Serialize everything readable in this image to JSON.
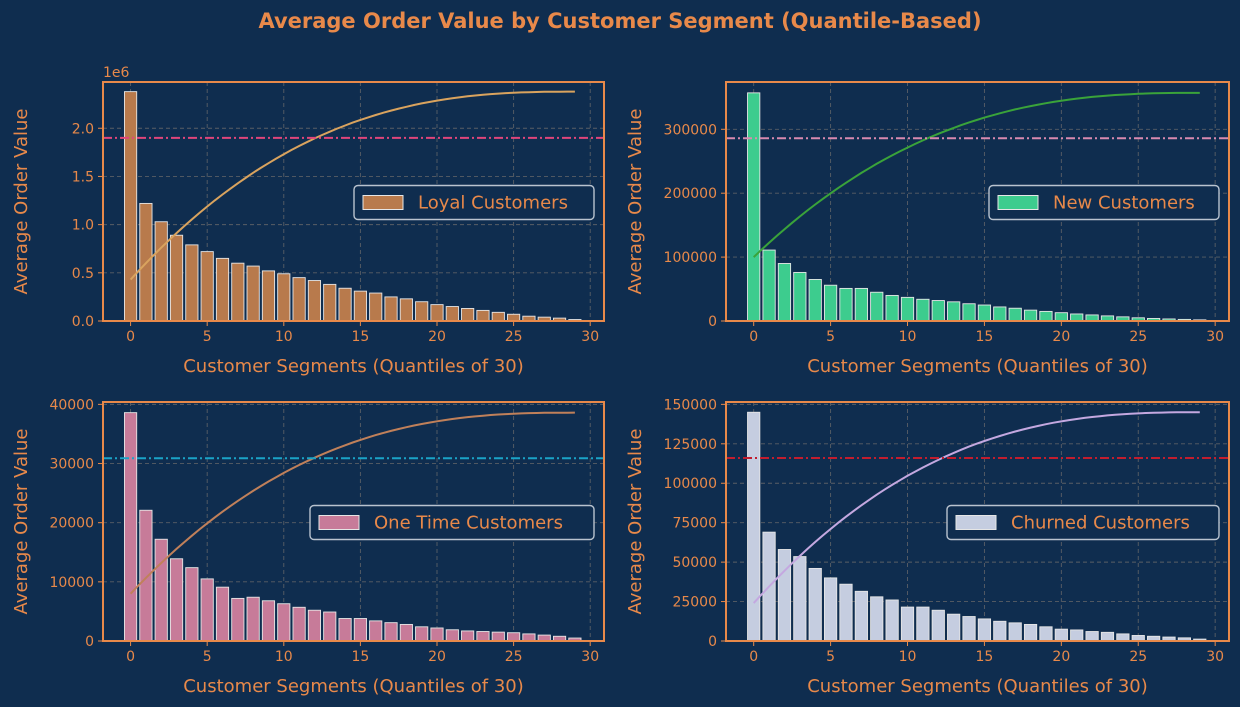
{
  "figure": {
    "title": "Average Order Value by Customer Segment (Quantile-Based)"
  },
  "theme": {
    "background": "#0f2d4f",
    "text_color": "#e8894a",
    "spine_color": "#e8894a",
    "grid_color": "#5a5f66",
    "legend_face": "#0f2d4f",
    "legend_edge": "#b9c3cf"
  },
  "chart_data": [
    {
      "type": "bar",
      "label": "Loyal Customers",
      "x": [
        0,
        1,
        2,
        3,
        4,
        5,
        6,
        7,
        8,
        9,
        10,
        11,
        12,
        13,
        14,
        15,
        16,
        17,
        18,
        19,
        20,
        21,
        22,
        23,
        24,
        25,
        26,
        27,
        28,
        29
      ],
      "values": [
        2380000,
        1220000,
        1030000,
        890000,
        790000,
        720000,
        650000,
        600000,
        570000,
        520000,
        490000,
        450000,
        420000,
        380000,
        340000,
        310000,
        290000,
        250000,
        230000,
        200000,
        170000,
        150000,
        130000,
        110000,
        90000,
        70000,
        50000,
        40000,
        30000,
        15000
      ],
      "bar_color": "#b87a4c",
      "cumulative_line": {
        "color": "#d9a35e",
        "start": 430000,
        "end": 2380000
      },
      "mean_line": {
        "value": 1900000,
        "color": "#e0457b",
        "style": "dash-dot"
      },
      "offset_text": "1e6",
      "yticks": [
        0,
        500000,
        1000000,
        1500000,
        2000000
      ],
      "ytick_labels": [
        "0.0",
        "0.5",
        "1.0",
        "1.5",
        "2.0"
      ],
      "ylim": [
        0,
        2480000
      ],
      "xlim": [
        -1.8,
        30.9
      ],
      "xticks": [
        0,
        5,
        10,
        15,
        20,
        25,
        30
      ],
      "xlabel": "Customer Segments (Quantiles of 30)",
      "ylabel": "Average Order Value",
      "legend_position": "center-right",
      "grid": true
    },
    {
      "type": "bar",
      "label": "New Customers",
      "x": [
        0,
        1,
        2,
        3,
        4,
        5,
        6,
        7,
        8,
        9,
        10,
        11,
        12,
        13,
        14,
        15,
        16,
        17,
        18,
        19,
        20,
        21,
        22,
        23,
        24,
        25,
        26,
        27,
        28,
        29
      ],
      "values": [
        357000,
        111000,
        90000,
        76000,
        65000,
        56000,
        51000,
        51000,
        45000,
        40000,
        37000,
        34000,
        32000,
        30000,
        27000,
        25000,
        22000,
        20000,
        17000,
        15000,
        13000,
        11000,
        9500,
        8000,
        6500,
        5000,
        4000,
        3200,
        2500,
        1800
      ],
      "bar_color": "#3dcc8e",
      "cumulative_line": {
        "color": "#3aa33a",
        "start": 100000,
        "end": 357000
      },
      "mean_line": {
        "value": 286000,
        "color": "#d88ab0",
        "style": "dash-dot"
      },
      "offset_text": "",
      "yticks": [
        0,
        100000,
        200000,
        300000
      ],
      "ytick_labels": [
        "0",
        "100000",
        "200000",
        "300000"
      ],
      "ylim": [
        0,
        374000
      ],
      "xlim": [
        -1.8,
        30.9
      ],
      "xticks": [
        0,
        5,
        10,
        15,
        20,
        25,
        30
      ],
      "xlabel": "Customer Segments (Quantiles of 30)",
      "ylabel": "Average Order Value",
      "legend_position": "center-right",
      "grid": true
    },
    {
      "type": "bar",
      "label": "One Time Customers",
      "x": [
        0,
        1,
        2,
        3,
        4,
        5,
        6,
        7,
        8,
        9,
        10,
        11,
        12,
        13,
        14,
        15,
        16,
        17,
        18,
        19,
        20,
        21,
        22,
        23,
        24,
        25,
        26,
        27,
        28,
        29
      ],
      "values": [
        38600,
        22100,
        17200,
        13900,
        12400,
        10500,
        9100,
        7200,
        7400,
        6800,
        6300,
        5700,
        5200,
        4900,
        3800,
        3800,
        3400,
        3100,
        2800,
        2400,
        2200,
        1900,
        1700,
        1600,
        1500,
        1400,
        1200,
        1000,
        800,
        500
      ],
      "bar_color": "#c77b99",
      "cumulative_line": {
        "color": "#c0805a",
        "start": 8000,
        "end": 38600
      },
      "mean_line": {
        "value": 30900,
        "color": "#1aa3c7",
        "style": "dash-dot"
      },
      "offset_text": "",
      "yticks": [
        0,
        10000,
        20000,
        30000,
        40000
      ],
      "ytick_labels": [
        "0",
        "10000",
        "20000",
        "30000",
        "40000"
      ],
      "ylim": [
        0,
        40400
      ],
      "xlim": [
        -1.8,
        30.9
      ],
      "xticks": [
        0,
        5,
        10,
        15,
        20,
        25,
        30
      ],
      "xlabel": "Customer Segments (Quantiles of 30)",
      "ylabel": "Average Order Value",
      "legend_position": "center-right",
      "grid": true
    },
    {
      "type": "bar",
      "label": "Churned Customers",
      "x": [
        0,
        1,
        2,
        3,
        4,
        5,
        6,
        7,
        8,
        9,
        10,
        11,
        12,
        13,
        14,
        15,
        16,
        17,
        18,
        19,
        20,
        21,
        22,
        23,
        24,
        25,
        26,
        27,
        28,
        29
      ],
      "values": [
        145000,
        69000,
        58000,
        53500,
        46000,
        40000,
        36000,
        31500,
        28000,
        26000,
        21500,
        21500,
        19500,
        17000,
        15500,
        14000,
        12500,
        11500,
        10500,
        9000,
        7500,
        7000,
        6000,
        5500,
        4500,
        3500,
        3000,
        2500,
        2000,
        1200
      ],
      "bar_color": "#c5cde0",
      "cumulative_line": {
        "color": "#c4a8e0",
        "start": 24000,
        "end": 145000
      },
      "mean_line": {
        "value": 116000,
        "color": "#c21d2e",
        "style": "dash-dot"
      },
      "offset_text": "",
      "yticks": [
        0,
        25000,
        50000,
        75000,
        100000,
        125000,
        150000
      ],
      "ytick_labels": [
        "0",
        "25000",
        "50000",
        "75000",
        "100000",
        "125000",
        "150000"
      ],
      "ylim": [
        0,
        151500
      ],
      "xlim": [
        -1.8,
        30.9
      ],
      "xticks": [
        0,
        5,
        10,
        15,
        20,
        25,
        30
      ],
      "xlabel": "Customer Segments (Quantiles of 30)",
      "ylabel": "Average Order Value",
      "legend_position": "center-right",
      "grid": true
    }
  ]
}
